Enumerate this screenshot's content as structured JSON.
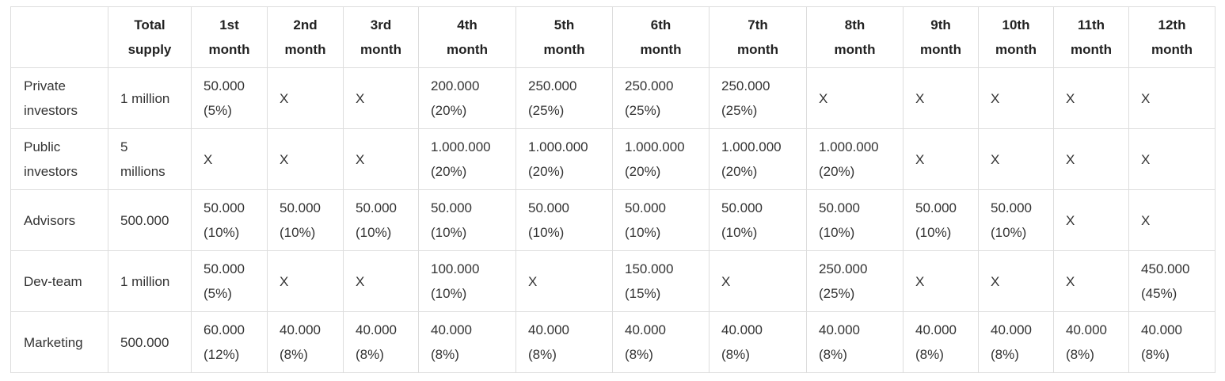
{
  "headers": [
    [
      "",
      ""
    ],
    [
      "Total",
      "supply"
    ],
    [
      "1st",
      "month"
    ],
    [
      "2nd",
      "month"
    ],
    [
      "3rd",
      "month"
    ],
    [
      "4th",
      "month"
    ],
    [
      "5th",
      "month"
    ],
    [
      "6th",
      "month"
    ],
    [
      "7th",
      "month"
    ],
    [
      "8th",
      "month"
    ],
    [
      "9th",
      "month"
    ],
    [
      "10th",
      "month"
    ],
    [
      "11th",
      "month"
    ],
    [
      "12th",
      "month"
    ]
  ],
  "rows": [
    {
      "label": [
        "Private",
        "investors"
      ],
      "supply": [
        "1 million"
      ],
      "months": [
        [
          "50.000",
          "(5%)"
        ],
        [
          "X"
        ],
        [
          "X"
        ],
        [
          "200.000",
          "(20%)"
        ],
        [
          "250.000",
          "(25%)"
        ],
        [
          "250.000",
          "(25%)"
        ],
        [
          "250.000",
          "(25%)"
        ],
        [
          "X"
        ],
        [
          "X"
        ],
        [
          "X"
        ],
        [
          "X"
        ],
        [
          "X"
        ]
      ]
    },
    {
      "label": [
        "Public",
        "investors"
      ],
      "supply": [
        "5",
        "millions"
      ],
      "months": [
        [
          "X"
        ],
        [
          "X"
        ],
        [
          "X"
        ],
        [
          "1.000.000",
          "(20%)"
        ],
        [
          "1.000.000",
          "(20%)"
        ],
        [
          "1.000.000",
          "(20%)"
        ],
        [
          "1.000.000",
          "(20%)"
        ],
        [
          "1.000.000",
          "(20%)"
        ],
        [
          "X"
        ],
        [
          "X"
        ],
        [
          "X"
        ],
        [
          "X"
        ]
      ]
    },
    {
      "label": [
        "Advisors"
      ],
      "supply": [
        "500.000"
      ],
      "months": [
        [
          "50.000",
          "(10%)"
        ],
        [
          "50.000",
          "(10%)"
        ],
        [
          "50.000",
          "(10%)"
        ],
        [
          "50.000",
          "(10%)"
        ],
        [
          "50.000",
          "(10%)"
        ],
        [
          "50.000",
          "(10%)"
        ],
        [
          "50.000",
          "(10%)"
        ],
        [
          "50.000",
          "(10%)"
        ],
        [
          "50.000",
          "(10%)"
        ],
        [
          "50.000",
          "(10%)"
        ],
        [
          "X"
        ],
        [
          "X"
        ]
      ]
    },
    {
      "label": [
        "Dev-team"
      ],
      "supply": [
        "1 million"
      ],
      "months": [
        [
          "50.000",
          "(5%)"
        ],
        [
          "X"
        ],
        [
          "X"
        ],
        [
          "100.000",
          "(10%)"
        ],
        [
          "X"
        ],
        [
          "150.000",
          "(15%)"
        ],
        [
          "X"
        ],
        [
          "250.000",
          "(25%)"
        ],
        [
          "X"
        ],
        [
          "X"
        ],
        [
          "X"
        ],
        [
          "450.000",
          "(45%)"
        ]
      ]
    },
    {
      "label": [
        "Marketing"
      ],
      "supply": [
        "500.000"
      ],
      "months": [
        [
          "60.000",
          "(12%)"
        ],
        [
          "40.000",
          "(8%)"
        ],
        [
          "40.000",
          "(8%)"
        ],
        [
          "40.000",
          "(8%)"
        ],
        [
          "40.000",
          "(8%)"
        ],
        [
          "40.000",
          "(8%)"
        ],
        [
          "40.000",
          "(8%)"
        ],
        [
          "40.000",
          "(8%)"
        ],
        [
          "40.000",
          "(8%)"
        ],
        [
          "40.000",
          "(8%)"
        ],
        [
          "40.000",
          "(8%)"
        ],
        [
          "40.000",
          "(8%)"
        ]
      ]
    }
  ]
}
